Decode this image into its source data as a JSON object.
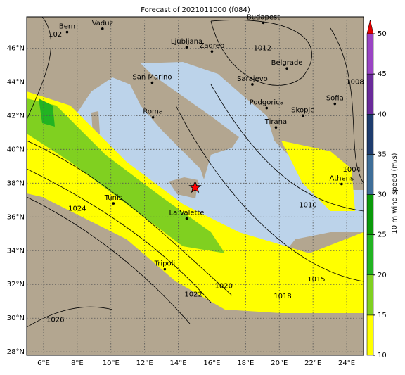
{
  "title": "Forecast of 2021011000 (f084)",
  "map": {
    "lonlim": [
      5,
      25
    ],
    "latlim": [
      27.8,
      47.85
    ],
    "xticks": [
      {
        "value": 6,
        "label": "6°E"
      },
      {
        "value": 8,
        "label": "8°E"
      },
      {
        "value": 10,
        "label": "10°E"
      },
      {
        "value": 12,
        "label": "12°E"
      },
      {
        "value": 14,
        "label": "14°E"
      },
      {
        "value": 16,
        "label": "16°E"
      },
      {
        "value": 18,
        "label": "18°E"
      },
      {
        "value": 20,
        "label": "20°E"
      },
      {
        "value": 22,
        "label": "22°E"
      },
      {
        "value": 24,
        "label": "24°E"
      }
    ],
    "yticks": [
      {
        "value": 28,
        "label": "28°N"
      },
      {
        "value": 30,
        "label": "30°N"
      },
      {
        "value": 32,
        "label": "32°N"
      },
      {
        "value": 34,
        "label": "34°N"
      },
      {
        "value": 36,
        "label": "36°N"
      },
      {
        "value": 38,
        "label": "38°N"
      },
      {
        "value": 40,
        "label": "40°N"
      },
      {
        "value": 42,
        "label": "42°N"
      },
      {
        "value": 44,
        "label": "44°N"
      },
      {
        "value": 46,
        "label": "46°N"
      }
    ],
    "cities": [
      {
        "name": "Bern",
        "lon": 7.4,
        "lat": 46.95
      },
      {
        "name": "Vaduz",
        "lon": 9.5,
        "lat": 47.15
      },
      {
        "name": "Budapest",
        "lon": 19.05,
        "lat": 47.5
      },
      {
        "name": "Ljubljana",
        "lon": 14.5,
        "lat": 46.05
      },
      {
        "name": "Zagreb",
        "lon": 16.0,
        "lat": 45.8
      },
      {
        "name": "San Marino",
        "lon": 12.45,
        "lat": 43.95
      },
      {
        "name": "Roma",
        "lon": 12.5,
        "lat": 41.9
      },
      {
        "name": "Sarajevo",
        "lon": 18.4,
        "lat": 43.85
      },
      {
        "name": "Belgrade",
        "lon": 20.45,
        "lat": 44.8
      },
      {
        "name": "Podgorica",
        "lon": 19.25,
        "lat": 42.45
      },
      {
        "name": "Tirana",
        "lon": 19.8,
        "lat": 41.3
      },
      {
        "name": "Skopje",
        "lon": 21.4,
        "lat": 42.0
      },
      {
        "name": "Sofia",
        "lon": 23.3,
        "lat": 42.7
      },
      {
        "name": "Athens",
        "lon": 23.7,
        "lat": 37.95
      },
      {
        "name": "Tunis",
        "lon": 10.15,
        "lat": 36.8
      },
      {
        "name": "La Valette",
        "lon": 14.5,
        "lat": 35.9
      },
      {
        "name": "Tripoli",
        "lon": 13.2,
        "lat": 32.9
      }
    ],
    "star": {
      "lon": 15.0,
      "lat": 37.75,
      "color": "#ff0000"
    },
    "isobar_labels": [
      {
        "text": "102",
        "lon": 6.7,
        "lat": 46.8
      },
      {
        "text": "1012",
        "lon": 19.0,
        "lat": 46.0
      },
      {
        "text": "1008",
        "lon": 24.5,
        "lat": 44.0
      },
      {
        "text": "1004",
        "lon": 24.3,
        "lat": 38.8
      },
      {
        "text": "1010",
        "lon": 21.7,
        "lat": 36.7
      },
      {
        "text": "1015",
        "lon": 22.2,
        "lat": 32.3
      },
      {
        "text": "1018",
        "lon": 20.2,
        "lat": 31.3
      },
      {
        "text": "1020",
        "lon": 16.7,
        "lat": 31.9
      },
      {
        "text": "1022",
        "lon": 14.9,
        "lat": 31.4
      },
      {
        "text": "1024",
        "lon": 8.0,
        "lat": 36.5
      },
      {
        "text": "1026",
        "lon": 6.7,
        "lat": 29.9
      }
    ]
  },
  "colorbar": {
    "label": "10 m wind speed (m/s)",
    "lim": [
      10,
      50
    ],
    "ticks": [
      10,
      15,
      20,
      25,
      30,
      35,
      40,
      45,
      50
    ],
    "colors": [
      "#ffff00",
      "#80d020",
      "#22b422",
      "#0a9a0a",
      "#3f6e98",
      "#1e3c6e",
      "#6a2a9a",
      "#9a44c4"
    ],
    "extend_color": "#e00000"
  }
}
